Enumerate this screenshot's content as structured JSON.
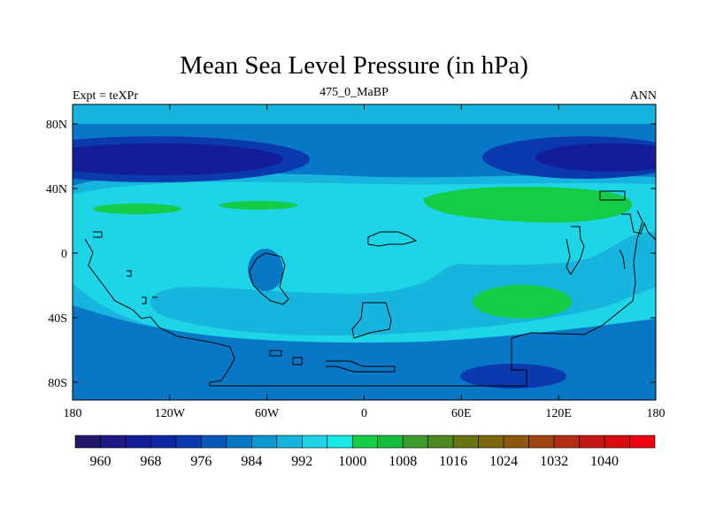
{
  "title": "Mean Sea Level Pressure (in hPa)",
  "left_label": "Expt = teXPr",
  "center_label": "475_0_MaBP",
  "right_label": "ANN",
  "lon_ticks": [
    "180",
    "120W",
    "60W",
    "0",
    "60E",
    "120E",
    "180"
  ],
  "lat_ticks": [
    "80N",
    "40N",
    "0",
    "40S",
    "80S"
  ],
  "colorbar": {
    "labels": [
      "960",
      "968",
      "976",
      "984",
      "992",
      "1000",
      "1008",
      "1016",
      "1024",
      "1032",
      "1040"
    ],
    "colors": [
      "#24156b",
      "#1c1884",
      "#141d98",
      "#0e27a3",
      "#0a3aae",
      "#0858ba",
      "#0877c6",
      "#0e96d2",
      "#17b5dd",
      "#1dd5e6",
      "#18e8e8",
      "#14cc46",
      "#14bd3c",
      "#3f9a2c",
      "#4e8820",
      "#6a7414",
      "#7b660e",
      "#8c5710",
      "#9e4412",
      "#b12d13",
      "#c41814",
      "#d80c10",
      "#ec0012"
    ]
  },
  "colors": {
    "deep_low": "#1c1884",
    "low": "#0a3aae",
    "mid_low": "#0877c6",
    "light": "#17b5dd",
    "cyan": "#1dd5e6",
    "green": "#14cc46"
  }
}
